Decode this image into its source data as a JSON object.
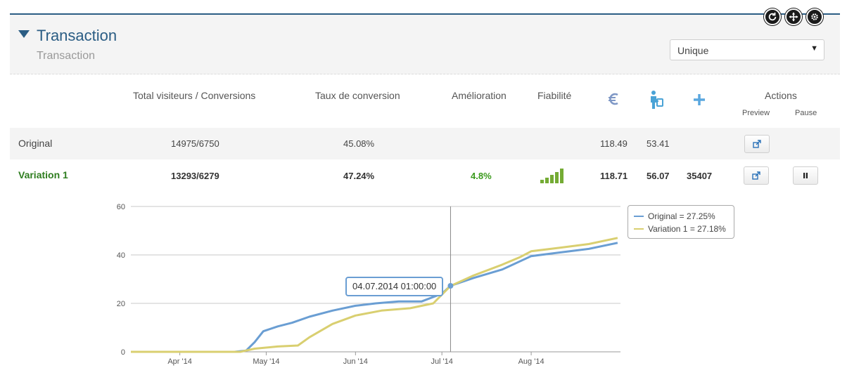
{
  "toolbar": {
    "icons": [
      "refresh-icon",
      "move-icon",
      "gear-icon"
    ]
  },
  "header": {
    "title": "Transaction",
    "subtitle": "Transaction"
  },
  "dropdown": {
    "selected": "Unique"
  },
  "columns": {
    "visitors": "Total visiteurs / Conversions",
    "rate": "Taux de conversion",
    "improvement": "Amélioration",
    "reliability": "Fiabilité",
    "euro_icon": "euro-icon",
    "person_icon": "person-icon",
    "plus_icon": "plus-icon",
    "actions": "Actions",
    "preview": "Preview",
    "pause": "Pause"
  },
  "rows": [
    {
      "name": "Original",
      "visitors": "14975/6750",
      "rate": "45.08%",
      "improvement": "",
      "reliability_level": 0,
      "euro": "118.49",
      "person": "53.41",
      "plus": ""
    },
    {
      "name": "Variation 1",
      "visitors": "13293/6279",
      "rate": "47.24%",
      "improvement": "4.8%",
      "reliability_level": 5,
      "euro": "118.71",
      "person": "56.07",
      "plus": "35407"
    }
  ],
  "colors": {
    "accent": "#2b5d84",
    "original": "#6a9ed3",
    "variation": "#d9cf70",
    "positive": "#3a9a1c"
  },
  "chart_data": {
    "type": "line",
    "ylim": [
      0,
      60
    ],
    "yticks": [
      0,
      20,
      40,
      60
    ],
    "xlim": [
      "2014-03-15",
      "2014-09-01"
    ],
    "xticks": [
      {
        "date": "2014-04-01",
        "label": "Apr '14"
      },
      {
        "date": "2014-05-01",
        "label": "May '14"
      },
      {
        "date": "2014-06-01",
        "label": "Jun '14"
      },
      {
        "date": "2014-07-01",
        "label": "Jul '14"
      },
      {
        "date": "2014-08-01",
        "label": "Aug '14"
      }
    ],
    "series": [
      {
        "name": "Original = 27.25%",
        "points": [
          [
            "2014-03-15",
            0
          ],
          [
            "2014-04-20",
            0
          ],
          [
            "2014-04-24",
            0.5
          ],
          [
            "2014-04-27",
            4
          ],
          [
            "2014-04-30",
            8.5
          ],
          [
            "2014-05-05",
            10.5
          ],
          [
            "2014-05-10",
            12
          ],
          [
            "2014-05-16",
            14.5
          ],
          [
            "2014-05-24",
            17
          ],
          [
            "2014-06-01",
            19
          ],
          [
            "2014-06-08",
            20
          ],
          [
            "2014-06-16",
            20.8
          ],
          [
            "2014-06-24",
            20.8
          ],
          [
            "2014-07-01",
            24
          ],
          [
            "2014-07-04",
            27.25
          ],
          [
            "2014-07-12",
            30.5
          ],
          [
            "2014-07-22",
            34
          ],
          [
            "2014-08-01",
            39.5
          ],
          [
            "2014-08-11",
            41
          ],
          [
            "2014-08-21",
            42.5
          ],
          [
            "2014-08-31",
            45
          ]
        ]
      },
      {
        "name": "Variation 1 = 27.18%",
        "points": [
          [
            "2014-03-15",
            0
          ],
          [
            "2014-04-22",
            0
          ],
          [
            "2014-04-27",
            1.3
          ],
          [
            "2014-05-05",
            2.2
          ],
          [
            "2014-05-12",
            2.6
          ],
          [
            "2014-05-16",
            6
          ],
          [
            "2014-05-24",
            11.5
          ],
          [
            "2014-06-01",
            15
          ],
          [
            "2014-06-10",
            17
          ],
          [
            "2014-06-20",
            18
          ],
          [
            "2014-06-28",
            20
          ],
          [
            "2014-07-04",
            27.18
          ],
          [
            "2014-07-12",
            31.5
          ],
          [
            "2014-07-22",
            36
          ],
          [
            "2014-07-28",
            39
          ],
          [
            "2014-08-01",
            41.5
          ],
          [
            "2014-08-11",
            43
          ],
          [
            "2014-08-21",
            44.5
          ],
          [
            "2014-08-31",
            47
          ]
        ]
      }
    ],
    "crosshair_date": "2014-07-04",
    "tooltip": "04.07.2014 01:00:00"
  }
}
